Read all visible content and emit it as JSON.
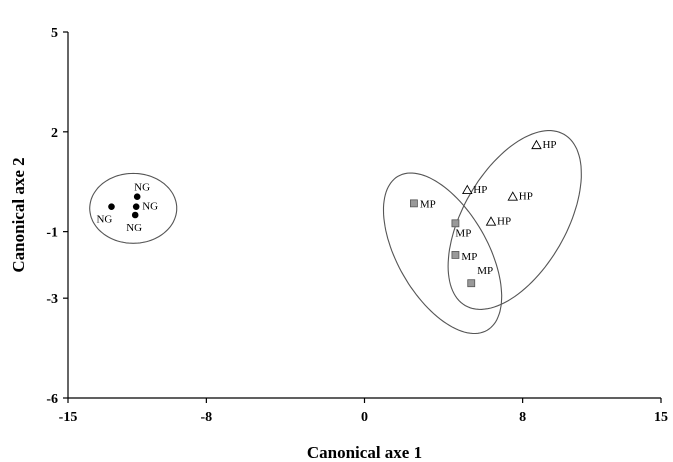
{
  "chart_data": {
    "type": "scatter",
    "xlabel": "Canonical axe 1",
    "ylabel": "Canonical axe 2",
    "xlim": [
      -15,
      15
    ],
    "ylim": [
      -6,
      5
    ],
    "xticks": [
      -15,
      -8,
      0,
      8,
      15
    ],
    "yticks": [
      5,
      2,
      -1,
      -3,
      -6
    ],
    "grid": false,
    "series": [
      {
        "name": "NG",
        "marker": "circle-filled",
        "points": [
          {
            "x": -11.5,
            "y": 0.05,
            "label": "NG"
          },
          {
            "x": -11.55,
            "y": -0.25,
            "label": "NG"
          },
          {
            "x": -12.8,
            "y": -0.25,
            "label": "NG"
          },
          {
            "x": -11.6,
            "y": -0.5,
            "label": "NG"
          }
        ]
      },
      {
        "name": "MP",
        "marker": "square-gray",
        "points": [
          {
            "x": 2.5,
            "y": -0.15,
            "label": "MP"
          },
          {
            "x": 4.6,
            "y": -0.75,
            "label": "MP"
          },
          {
            "x": 4.6,
            "y": -1.7,
            "label": "MP"
          },
          {
            "x": 5.4,
            "y": -2.55,
            "label": "MP"
          }
        ]
      },
      {
        "name": "HP",
        "marker": "triangle-open",
        "points": [
          {
            "x": 8.7,
            "y": 1.6,
            "label": "HP"
          },
          {
            "x": 5.2,
            "y": 0.25,
            "label": "HP"
          },
          {
            "x": 7.5,
            "y": 0.05,
            "label": "HP"
          },
          {
            "x": 6.4,
            "y": -0.7,
            "label": "HP"
          }
        ]
      }
    ],
    "ellipses": [
      {
        "group": "NG",
        "cx": -11.7,
        "cy": -0.3,
        "rx": 2.2,
        "ry": 1.05,
        "angle": 0
      },
      {
        "group": "MP",
        "cx": 3.95,
        "cy": -1.65,
        "rx": 4.5,
        "ry": 1.35,
        "angle": -60
      },
      {
        "group": "HP",
        "cx": 7.6,
        "cy": -0.65,
        "rx": 5.0,
        "ry": 1.55,
        "angle": 60
      }
    ]
  }
}
